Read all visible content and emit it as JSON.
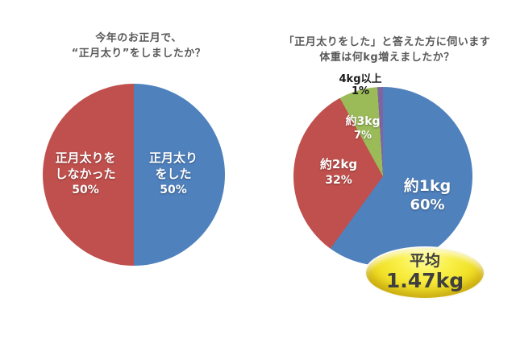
{
  "left_chart": {
    "title_line1": "今年のお正月で、",
    "title_line2": "“正月太り”をしましたか？",
    "slice_red": {
      "line1": "正月太りを",
      "line2": "しなかった",
      "pct": "50%"
    },
    "slice_blue": {
      "line1": "正月太り",
      "line2": "をした",
      "pct": "50%"
    }
  },
  "right_chart": {
    "title_line1": "「正月太りをした」と答えた方に伺います",
    "title_line2": "体重は何kg増えましたか？",
    "slice_1kg": {
      "label": "約1kg",
      "pct": "60%"
    },
    "slice_2kg": {
      "label": "約2kg",
      "pct": "32%"
    },
    "slice_3kg": {
      "label": "約3kg",
      "pct": "7%"
    },
    "slice_4kg": {
      "label": "4kg以上",
      "pct": "1%"
    },
    "average_badge": {
      "label": "平均",
      "value": "1.47kg"
    }
  },
  "colors": {
    "blue": "#4F81BD",
    "red": "#C0504D",
    "green": "#9BBB59",
    "purple": "#8064A2",
    "badge_yellow": "#F2E32A",
    "title_gray": "#595959",
    "slice_text": "#FFFFFF",
    "outside_label_text": "#1A1A1A"
  },
  "chart_data": [
    {
      "type": "pie",
      "title": "今年のお正月で、“正月太り”をしましたか？",
      "categories": [
        "正月太りをした",
        "正月太りをしなかった"
      ],
      "values": [
        50,
        50
      ],
      "unit": "%",
      "colors": [
        "#4F81BD",
        "#C0504D"
      ],
      "start_angle_deg": 0,
      "direction": "clockwise",
      "labels_position": "inside",
      "legend": "none"
    },
    {
      "type": "pie",
      "title": "「正月太りをした」と答えた方に伺います 体重は何kg増えましたか？",
      "categories": [
        "約1kg",
        "約2kg",
        "約3kg",
        "4kg以上"
      ],
      "values": [
        60,
        32,
        7,
        1
      ],
      "unit": "%",
      "colors": [
        "#4F81BD",
        "#C0504D",
        "#9BBB59",
        "#8064A2"
      ],
      "start_angle_deg": 0,
      "direction": "clockwise",
      "labels_position": "inside-except-smallest-outside",
      "legend": "none",
      "annotation": {
        "text": "平均 1.47kg",
        "shape": "yellow-oval-badge",
        "position": "bottom-right"
      }
    }
  ]
}
